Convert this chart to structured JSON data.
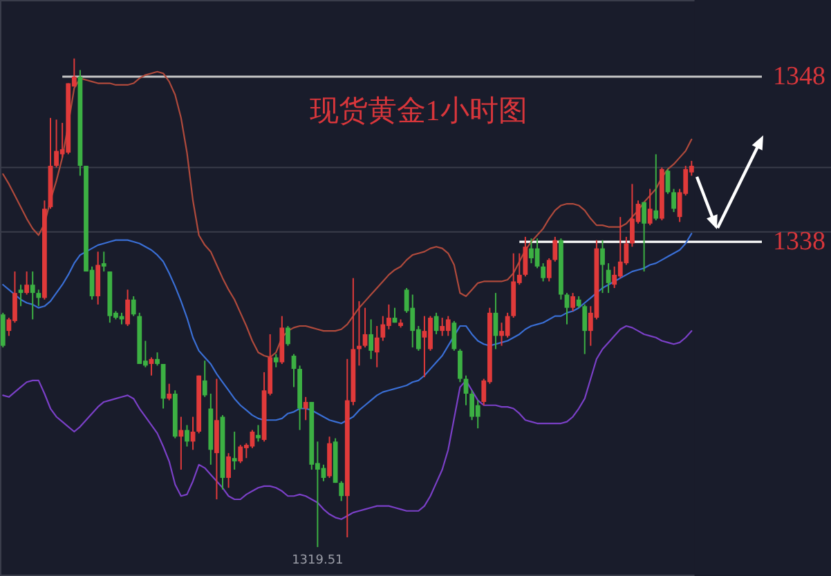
{
  "chart_data": {
    "type": "candlestick",
    "title": "现货黄金1小时图",
    "categories": [
      null,
      null,
      null,
      null,
      null,
      null,
      null,
      null,
      null,
      null,
      null,
      null,
      null,
      null,
      null,
      null,
      null,
      null,
      null,
      null,
      null,
      null,
      null,
      null,
      null,
      null,
      null,
      null,
      null,
      null,
      null,
      null,
      null,
      null,
      null,
      null,
      null,
      null,
      null,
      null,
      null,
      null,
      null,
      null,
      null,
      null,
      null,
      null,
      null,
      null,
      null,
      null,
      null,
      null,
      null,
      null,
      null,
      null,
      null,
      null,
      null,
      null,
      null,
      null,
      null,
      null,
      null,
      null,
      null,
      null,
      null,
      null,
      null,
      null,
      null,
      null,
      null,
      null,
      null,
      null,
      null,
      null,
      null,
      null,
      null,
      null,
      null,
      null,
      null,
      null,
      null,
      null,
      null,
      null,
      null,
      null,
      null,
      null,
      null,
      null,
      null,
      null,
      null,
      null,
      null,
      null,
      null,
      null,
      null,
      null,
      null,
      null,
      null,
      null,
      null,
      null,
      null
    ],
    "ohlc": [
      [
        1333.6,
        1333.7,
        1331.6,
        1331.7
      ],
      [
        1332.6,
        1333.4,
        1332.3,
        1333.3
      ],
      [
        1333.2,
        1336.2,
        1333.1,
        1334.9
      ],
      [
        1335.1,
        1335.4,
        1334.1,
        1334.9
      ],
      [
        1334.9,
        1336.2,
        1334.8,
        1335.4
      ],
      [
        1335.4,
        1336.2,
        1333.3,
        1334.9
      ],
      [
        1334.9,
        1335.1,
        1334.1,
        1334.6
      ],
      [
        1334.6,
        1340.5,
        1334.5,
        1340.0
      ],
      [
        1340.1,
        1345.5,
        1340.0,
        1342.6
      ],
      [
        1342.6,
        1345.4,
        1342.5,
        1343.5
      ],
      [
        1343.3,
        1345.2,
        1343.1,
        1343.6
      ],
      [
        1343.4,
        1347.6,
        1343.3,
        1347.6
      ],
      [
        1347.4,
        1349.1,
        1347.4,
        1348.0
      ],
      [
        1348.0,
        1348.4,
        1342.0,
        1342.6
      ],
      [
        1342.6,
        1342.6,
        1336.2,
        1336.2
      ],
      [
        1336.3,
        1336.5,
        1334.5,
        1334.7
      ],
      [
        1334.7,
        1337.4,
        1334.2,
        1336.6
      ],
      [
        1336.7,
        1337.4,
        1336.2,
        1336.5
      ],
      [
        1336.2,
        1336.2,
        1333.1,
        1333.5
      ],
      [
        1333.7,
        1333.8,
        1333.3,
        1333.4
      ],
      [
        1333.5,
        1333.7,
        1333.0,
        1333.3
      ],
      [
        1333.0,
        1335.1,
        1332.9,
        1334.5
      ],
      [
        1334.5,
        1334.7,
        1333.5,
        1333.6
      ],
      [
        1333.5,
        1333.7,
        1330.6,
        1330.6
      ],
      [
        1330.8,
        1332.0,
        1330.4,
        1330.5
      ],
      [
        1330.6,
        1331.0,
        1329.9,
        1330.9
      ],
      [
        1330.9,
        1331.3,
        1330.5,
        1330.6
      ],
      [
        1330.6,
        1330.6,
        1327.9,
        1328.5
      ],
      [
        1328.5,
        1329.4,
        1328.4,
        1328.8
      ],
      [
        1328.8,
        1329.0,
        1326.1,
        1326.2
      ],
      [
        1326.2,
        1327.4,
        1324.2,
        1326.6
      ],
      [
        1326.6,
        1326.9,
        1325.6,
        1325.9
      ],
      [
        1325.9,
        1327.4,
        1325.4,
        1326.5
      ],
      [
        1326.5,
        1329.9,
        1326.4,
        1329.9
      ],
      [
        1329.6,
        1330.8,
        1328.6,
        1328.7
      ],
      [
        1327.9,
        1328.8,
        1324.5,
        1325.4
      ],
      [
        1325.2,
        1329.7,
        1322.4,
        1327.2
      ],
      [
        1327.4,
        1327.5,
        1323.0,
        1323.7
      ],
      [
        1323.7,
        1325.2,
        1323.1,
        1325.0
      ],
      [
        1324.9,
        1326.5,
        1324.2,
        1324.7
      ],
      [
        1324.7,
        1325.7,
        1324.6,
        1325.6
      ],
      [
        1325.5,
        1325.8,
        1324.9,
        1325.7
      ],
      [
        1325.6,
        1326.6,
        1325.5,
        1326.5
      ],
      [
        1326.3,
        1326.9,
        1325.9,
        1326.1
      ],
      [
        1326.0,
        1330.1,
        1325.9,
        1329.0
      ],
      [
        1328.8,
        1332.4,
        1328.7,
        1331.0
      ],
      [
        1331.0,
        1331.2,
        1330.4,
        1330.7
      ],
      [
        1330.7,
        1333.5,
        1330.6,
        1332.8
      ],
      [
        1332.8,
        1332.9,
        1331.7,
        1331.8
      ],
      [
        1331.1,
        1331.2,
        1329.2,
        1330.3
      ],
      [
        1330.3,
        1330.5,
        1326.6,
        1327.9
      ],
      [
        1327.9,
        1328.6,
        1327.2,
        1328.3
      ],
      [
        1328.3,
        1328.3,
        1324.2,
        1324.5
      ],
      [
        1324.6,
        1325.9,
        1319.51,
        1324.2
      ],
      [
        1324.3,
        1324.5,
        1323.5,
        1323.7
      ],
      [
        1323.8,
        1326.2,
        1323.7,
        1325.8
      ],
      [
        1325.9,
        1326.1,
        1323.4,
        1323.4
      ],
      [
        1323.4,
        1323.5,
        1322.3,
        1322.6
      ],
      [
        1322.6,
        1330.9,
        1320.1,
        1328.4
      ],
      [
        1328.3,
        1335.8,
        1328.1,
        1331.5
      ],
      [
        1331.5,
        1334.4,
        1330.5,
        1331.7
      ],
      [
        1331.7,
        1334.0,
        1331.6,
        1332.4
      ],
      [
        1332.4,
        1333.3,
        1330.9,
        1331.4
      ],
      [
        1331.3,
        1332.9,
        1330.4,
        1332.2
      ],
      [
        1332.2,
        1333.5,
        1332.0,
        1333.0
      ],
      [
        1332.9,
        1334.2,
        1332.7,
        1333.4
      ],
      [
        1333.4,
        1334.0,
        1333.1,
        1333.1
      ],
      [
        1332.9,
        1333.3,
        1332.8,
        1333.1
      ],
      [
        1335.1,
        1335.2,
        1333.7,
        1333.8
      ],
      [
        1334.0,
        1334.8,
        1331.6,
        1332.6
      ],
      [
        1332.7,
        1332.9,
        1331.4,
        1331.5
      ],
      [
        1332.2,
        1333.5,
        1329.8,
        1332.6
      ],
      [
        1331.5,
        1333.5,
        1331.4,
        1333.4
      ],
      [
        1333.5,
        1333.7,
        1332.4,
        1332.6
      ],
      [
        1332.6,
        1333.4,
        1332.3,
        1332.9
      ],
      [
        1332.6,
        1333.5,
        1332.3,
        1333.3
      ],
      [
        1333.1,
        1333.2,
        1331.4,
        1331.5
      ],
      [
        1331.4,
        1331.5,
        1329.5,
        1329.7
      ],
      [
        1329.7,
        1329.9,
        1328.1,
        1328.8
      ],
      [
        1328.8,
        1329.0,
        1327.2,
        1327.4
      ],
      [
        1328.1,
        1328.4,
        1326.7,
        1327.4
      ],
      [
        1328.3,
        1329.7,
        1328.1,
        1329.6
      ],
      [
        1329.5,
        1334.0,
        1329.4,
        1333.7
      ],
      [
        1333.7,
        1334.9,
        1331.5,
        1332.3
      ],
      [
        1332.3,
        1333.1,
        1331.7,
        1332.6
      ],
      [
        1332.3,
        1333.7,
        1332.2,
        1333.5
      ],
      [
        1333.5,
        1337.3,
        1333.4,
        1335.6
      ],
      [
        1335.5,
        1337.3,
        1335.4,
        1336.0
      ],
      [
        1336.0,
        1338.3,
        1335.9,
        1337.7
      ],
      [
        1337.6,
        1338.2,
        1336.7,
        1337.0
      ],
      [
        1337.6,
        1338.2,
        1336.4,
        1336.5
      ],
      [
        1336.5,
        1336.7,
        1335.6,
        1335.8
      ],
      [
        1335.8,
        1337.0,
        1335.6,
        1336.9
      ],
      [
        1336.9,
        1338.3,
        1336.8,
        1338.1
      ],
      [
        1338.1,
        1338.2,
        1334.5,
        1334.8
      ],
      [
        1334.8,
        1334.9,
        1333.0,
        1334.0
      ],
      [
        1334.0,
        1334.9,
        1333.8,
        1334.7
      ],
      [
        1334.5,
        1334.7,
        1334.0,
        1334.1
      ],
      [
        1334.1,
        1334.2,
        1331.2,
        1332.6
      ],
      [
        1332.6,
        1334.1,
        1331.7,
        1333.7
      ],
      [
        1333.4,
        1338.1,
        1333.3,
        1337.6
      ],
      [
        1337.6,
        1338.1,
        1334.9,
        1336.6
      ],
      [
        1336.3,
        1336.7,
        1334.9,
        1335.5
      ],
      [
        1335.4,
        1336.5,
        1335.2,
        1336.0
      ],
      [
        1335.9,
        1339.5,
        1335.8,
        1336.8
      ],
      [
        1336.7,
        1338.3,
        1336.6,
        1337.9
      ],
      [
        1337.9,
        1341.5,
        1337.7,
        1339.4
      ],
      [
        1339.2,
        1340.5,
        1339.1,
        1340.3
      ],
      [
        1340.4,
        1340.4,
        1336.2,
        1339.1
      ],
      [
        1339.1,
        1341.2,
        1339.0,
        1340.0
      ],
      [
        1339.9,
        1343.3,
        1339.3,
        1339.4
      ],
      [
        1339.4,
        1342.5,
        1339.3,
        1342.4
      ],
      [
        1342.3,
        1342.4,
        1340.9,
        1341.0
      ],
      [
        1341.0,
        1341.2,
        1339.8,
        1340.0
      ],
      [
        1339.5,
        1341.2,
        1339.2,
        1341.0
      ],
      [
        1340.9,
        1342.6,
        1340.8,
        1342.4
      ],
      [
        1342.2,
        1342.9,
        1342.0,
        1342.6
      ]
    ],
    "colors": [
      "#3cb043",
      "#e03a3a",
      "#e03a3a",
      "#3cb043",
      "#e03a3a",
      "#3cb043",
      "#3cb043",
      "#e03a3a",
      "#e03a3a",
      "#e03a3a",
      "#e03a3a",
      "#e03a3a",
      "#e03a3a",
      "#3cb043",
      "#3cb043",
      "#3cb043",
      "#e03a3a",
      "#3cb043",
      "#3cb043",
      "#3cb043",
      "#3cb043",
      "#e03a3a",
      "#3cb043",
      "#3cb043",
      "#3cb043",
      "#e03a3a",
      "#3cb043",
      "#3cb043",
      "#e03a3a",
      "#3cb043",
      "#e03a3a",
      "#3cb043",
      "#e03a3a",
      "#e03a3a",
      "#3cb043",
      "#3cb043",
      "#e03a3a",
      "#3cb043",
      "#e03a3a",
      "#3cb043",
      "#e03a3a",
      "#e03a3a",
      "#e03a3a",
      "#3cb043",
      "#e03a3a",
      "#e03a3a",
      "#3cb043",
      "#e03a3a",
      "#3cb043",
      "#3cb043",
      "#3cb043",
      "#e03a3a",
      "#3cb043",
      "#3cb043",
      "#3cb043",
      "#e03a3a",
      "#3cb043",
      "#3cb043",
      "#e03a3a",
      "#e03a3a",
      "#e03a3a",
      "#e03a3a",
      "#3cb043",
      "#e03a3a",
      "#e03a3a",
      "#e03a3a",
      "#3cb043",
      "#e03a3a",
      "#3cb043",
      "#3cb043",
      "#3cb043",
      "#e03a3a",
      "#e03a3a",
      "#3cb043",
      "#e03a3a",
      "#e03a3a",
      "#3cb043",
      "#3cb043",
      "#3cb043",
      "#3cb043",
      "#3cb043",
      "#e03a3a",
      "#e03a3a",
      "#3cb043",
      "#e03a3a",
      "#e03a3a",
      "#e03a3a",
      "#e03a3a",
      "#e03a3a",
      "#3cb043",
      "#3cb043",
      "#3cb043",
      "#e03a3a",
      "#e03a3a",
      "#3cb043",
      "#3cb043",
      "#e03a3a",
      "#3cb043",
      "#3cb043",
      "#e03a3a",
      "#e03a3a",
      "#3cb043",
      "#3cb043",
      "#e03a3a",
      "#e03a3a",
      "#e03a3a",
      "#e03a3a",
      "#e03a3a",
      "#3cb043",
      "#e03a3a",
      "#3cb043",
      "#e03a3a",
      "#3cb043",
      "#3cb043",
      "#e03a3a",
      "#e03a3a",
      "#e03a3a"
    ],
    "series": [
      {
        "type": "line",
        "color": "#b04a3c",
        "values": [
          1342.1,
          1341.5,
          1340.8,
          1340.1,
          1339.4,
          1338.8,
          1338.4,
          1339.1,
          1340.5,
          1341.7,
          1343.1,
          1345.1,
          1347.3,
          1347.9,
          1347.8,
          1347.7,
          1347.6,
          1347.6,
          1347.6,
          1347.5,
          1347.5,
          1347.5,
          1347.6,
          1347.9,
          1348.1,
          1348.2,
          1348.3,
          1348.2,
          1347.7,
          1346.9,
          1345.5,
          1343.4,
          1340.5,
          1338.4,
          1337.8,
          1337.4,
          1336.6,
          1335.8,
          1335.1,
          1334.5,
          1333.7,
          1332.9,
          1332.0,
          1331.3,
          1331.1,
          1331.0,
          1331.3,
          1332.2,
          1332.6,
          1332.8,
          1332.9,
          1332.9,
          1332.8,
          1332.7,
          1332.6,
          1332.6,
          1332.6,
          1332.7,
          1333.0,
          1333.5,
          1334.0,
          1334.4,
          1334.8,
          1335.2,
          1335.6,
          1336.0,
          1336.3,
          1336.5,
          1336.9,
          1337.2,
          1337.3,
          1337.4,
          1337.6,
          1337.7,
          1337.6,
          1337.3,
          1336.6,
          1334.9,
          1334.7,
          1335.1,
          1335.5,
          1335.6,
          1335.6,
          1335.6,
          1335.6,
          1335.7,
          1336.1,
          1336.8,
          1337.5,
          1338.0,
          1338.4,
          1338.8,
          1339.4,
          1339.9,
          1340.2,
          1340.3,
          1340.3,
          1340.2,
          1339.9,
          1339.4,
          1339.0,
          1339.0,
          1338.9,
          1338.9,
          1338.9,
          1339.1,
          1339.5,
          1339.9,
          1340.4,
          1340.8,
          1341.2,
          1341.9,
          1342.4,
          1342.7,
          1343.1,
          1343.5,
          1344.2
        ]
      },
      {
        "type": "line",
        "color": "#3a6fd6",
        "values": [
          1335.4,
          1335.1,
          1334.8,
          1334.5,
          1334.3,
          1334.2,
          1334.0,
          1334.1,
          1334.4,
          1334.9,
          1335.4,
          1336.0,
          1336.7,
          1337.2,
          1337.4,
          1337.6,
          1337.8,
          1337.9,
          1338.0,
          1338.1,
          1338.1,
          1338.1,
          1338.0,
          1337.9,
          1337.7,
          1337.5,
          1337.2,
          1336.8,
          1336.1,
          1335.3,
          1334.4,
          1333.4,
          1332.2,
          1331.4,
          1331.0,
          1330.6,
          1330.0,
          1329.5,
          1329.0,
          1328.5,
          1328.1,
          1327.8,
          1327.5,
          1327.3,
          1327.2,
          1327.2,
          1327.2,
          1327.3,
          1327.6,
          1327.7,
          1327.9,
          1327.9,
          1327.8,
          1327.6,
          1327.4,
          1327.2,
          1327.1,
          1327.0,
          1327.2,
          1327.4,
          1327.8,
          1328.1,
          1328.4,
          1328.7,
          1328.9,
          1329.0,
          1329.1,
          1329.2,
          1329.3,
          1329.5,
          1329.6,
          1329.9,
          1330.3,
          1330.7,
          1331.1,
          1331.7,
          1332.3,
          1332.9,
          1332.9,
          1332.4,
          1332.0,
          1331.8,
          1331.7,
          1331.8,
          1331.9,
          1332.0,
          1332.2,
          1332.4,
          1332.7,
          1332.9,
          1333.0,
          1333.1,
          1333.3,
          1333.5,
          1333.5,
          1333.7,
          1333.8,
          1334.0,
          1334.3,
          1334.6,
          1334.9,
          1335.2,
          1335.4,
          1335.6,
          1335.8,
          1336.0,
          1336.2,
          1336.3,
          1336.4,
          1336.6,
          1336.7,
          1336.9,
          1337.1,
          1337.3,
          1337.5,
          1337.9,
          1338.5
        ]
      },
      {
        "type": "line",
        "color": "#7b40c8",
        "values": [
          1328.7,
          1328.6,
          1328.9,
          1329.2,
          1329.5,
          1329.6,
          1329.6,
          1328.8,
          1327.9,
          1327.4,
          1327.1,
          1326.8,
          1326.5,
          1326.8,
          1327.2,
          1327.6,
          1328.0,
          1328.3,
          1328.4,
          1328.5,
          1328.6,
          1328.7,
          1328.5,
          1327.9,
          1327.4,
          1326.9,
          1326.4,
          1325.6,
          1324.7,
          1323.3,
          1322.6,
          1322.7,
          1323.5,
          1324.5,
          1324.3,
          1323.9,
          1323.5,
          1323.1,
          1322.6,
          1322.4,
          1322.4,
          1322.7,
          1322.9,
          1323.1,
          1323.2,
          1323.2,
          1323.1,
          1322.9,
          1322.6,
          1322.6,
          1322.7,
          1322.6,
          1322.4,
          1322.2,
          1321.8,
          1321.5,
          1321.3,
          1321.2,
          1321.4,
          1321.6,
          1321.7,
          1321.8,
          1321.9,
          1322.0,
          1322.0,
          1322.0,
          1321.9,
          1321.8,
          1321.7,
          1321.7,
          1321.7,
          1322.0,
          1322.6,
          1323.4,
          1324.2,
          1325.4,
          1327.3,
          1329.2,
          1329.6,
          1329.0,
          1328.4,
          1328.1,
          1328.1,
          1328.1,
          1328.0,
          1328.0,
          1327.9,
          1327.6,
          1327.2,
          1327.1,
          1327.0,
          1327.0,
          1327.0,
          1327.0,
          1327.0,
          1327.1,
          1327.4,
          1327.9,
          1328.5,
          1329.7,
          1330.9,
          1331.5,
          1331.9,
          1332.3,
          1332.7,
          1332.9,
          1332.8,
          1332.6,
          1332.4,
          1332.3,
          1332.2,
          1332.0,
          1331.9,
          1331.8,
          1331.9,
          1332.2,
          1332.6
        ]
      }
    ],
    "ylim": [
      1317.8,
      1352.6
    ],
    "yticks": [
      1348,
      1338
    ],
    "ref_lines": [
      {
        "axis": "y",
        "value": 1342.5,
        "color": "#3a3d4b"
      },
      {
        "axis": "y",
        "value": 1338.6,
        "color": "#3a3d4b"
      },
      {
        "axis": "y",
        "value": 1348,
        "color": "#c8c8c8"
      },
      {
        "axis": "y",
        "value": 1338,
        "color": "#ffffff"
      }
    ],
    "annotations": [
      {
        "text": "1319.51",
        "y": 1319.51
      }
    ]
  }
}
